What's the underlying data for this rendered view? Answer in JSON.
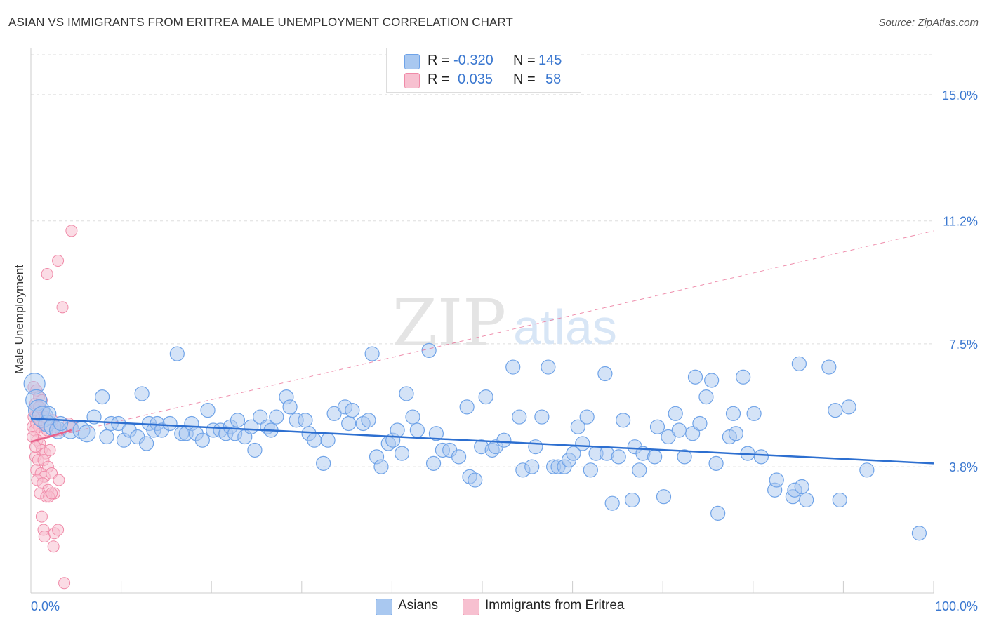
{
  "title": "ASIAN VS IMMIGRANTS FROM ERITREA MALE UNEMPLOYMENT CORRELATION CHART",
  "source": "Source: ZipAtlas.com",
  "watermark": {
    "zip": "ZIP",
    "atlas": "atlas"
  },
  "legend": {
    "rows": [
      {
        "r_label": "R =",
        "r_value": "-0.320",
        "n_label": "N =",
        "n_value": "145",
        "color": "#6fa3e8"
      },
      {
        "r_label": "R =",
        "r_value": "0.035",
        "n_label": "N =",
        "n_value": "58",
        "color": "#f08aa8"
      }
    ]
  },
  "bottom_legend": {
    "asians": "Asians",
    "eritrea": "Immigrants from Eritrea"
  },
  "colors": {
    "asian_fill": "#a9c8f0",
    "asian_stroke": "#6fa3e8",
    "asian_line": "#2d6fd0",
    "eritrea_fill": "#f7c0d0",
    "eritrea_stroke": "#f08aa8",
    "eritrea_line": "#e8608a",
    "grid": "#dddddd",
    "tick_label": "#3b78d0"
  },
  "chart_data": {
    "type": "scatter",
    "title": "ASIAN VS IMMIGRANTS FROM ERITREA MALE UNEMPLOYMENT CORRELATION CHART",
    "xlabel": "",
    "ylabel": "Male Unemployment",
    "xlim": [
      0,
      100
    ],
    "ylim": [
      0,
      16.2
    ],
    "x_tick_labels": [
      {
        "x": 0,
        "label": "0.0%"
      },
      {
        "x": 100,
        "label": "100.0%"
      }
    ],
    "y_ticks": [
      {
        "y": 3.8,
        "label": "3.8%"
      },
      {
        "y": 7.5,
        "label": "7.5%"
      },
      {
        "y": 11.2,
        "label": "11.2%"
      },
      {
        "y": 15.0,
        "label": "15.0%"
      }
    ],
    "grid": true,
    "legend_position": "top-center",
    "series": [
      {
        "name": "Asians",
        "r": -0.32,
        "n": 145,
        "trend": {
          "x": [
            0,
            100
          ],
          "y": [
            5.25,
            3.9
          ]
        },
        "points": [
          [
            0.4,
            6.3
          ],
          [
            0.6,
            5.8
          ],
          [
            0.9,
            5.5
          ],
          [
            1.3,
            5.3
          ],
          [
            1.8,
            5.1
          ],
          [
            2.4,
            5.0
          ],
          [
            3.0,
            4.9
          ],
          [
            4.4,
            4.9
          ],
          [
            5.6,
            4.9
          ],
          [
            6.2,
            4.8
          ],
          [
            2.0,
            5.4
          ],
          [
            3.3,
            5.1
          ],
          [
            7.0,
            5.3
          ],
          [
            7.9,
            5.9
          ],
          [
            8.4,
            4.7
          ],
          [
            8.9,
            5.1
          ],
          [
            9.7,
            5.1
          ],
          [
            10.3,
            4.6
          ],
          [
            10.9,
            4.9
          ],
          [
            11.8,
            4.7
          ],
          [
            12.3,
            6.0
          ],
          [
            12.8,
            4.5
          ],
          [
            13.1,
            5.1
          ],
          [
            13.6,
            4.9
          ],
          [
            14.0,
            5.1
          ],
          [
            14.5,
            4.9
          ],
          [
            15.4,
            5.1
          ],
          [
            16.2,
            7.2
          ],
          [
            16.7,
            4.8
          ],
          [
            17.2,
            4.8
          ],
          [
            17.8,
            5.1
          ],
          [
            18.3,
            4.8
          ],
          [
            19.0,
            4.6
          ],
          [
            19.6,
            5.5
          ],
          [
            20.2,
            4.9
          ],
          [
            21.0,
            4.9
          ],
          [
            21.6,
            4.8
          ],
          [
            22.1,
            5.0
          ],
          [
            22.6,
            4.8
          ],
          [
            22.9,
            5.2
          ],
          [
            23.7,
            4.7
          ],
          [
            24.4,
            5.0
          ],
          [
            24.8,
            4.3
          ],
          [
            25.4,
            5.3
          ],
          [
            26.2,
            5.0
          ],
          [
            26.6,
            4.9
          ],
          [
            27.2,
            5.3
          ],
          [
            28.3,
            5.9
          ],
          [
            28.7,
            5.6
          ],
          [
            29.4,
            5.2
          ],
          [
            30.4,
            5.2
          ],
          [
            30.8,
            4.8
          ],
          [
            31.4,
            4.6
          ],
          [
            32.4,
            3.9
          ],
          [
            32.9,
            4.6
          ],
          [
            33.6,
            5.4
          ],
          [
            34.8,
            5.6
          ],
          [
            35.2,
            5.1
          ],
          [
            35.6,
            5.5
          ],
          [
            36.8,
            5.1
          ],
          [
            37.4,
            5.2
          ],
          [
            37.8,
            7.2
          ],
          [
            38.3,
            4.1
          ],
          [
            38.8,
            3.8
          ],
          [
            39.6,
            4.5
          ],
          [
            40.1,
            4.6
          ],
          [
            40.6,
            4.9
          ],
          [
            41.1,
            4.2
          ],
          [
            41.6,
            6.0
          ],
          [
            42.3,
            5.3
          ],
          [
            42.8,
            4.9
          ],
          [
            44.1,
            7.3
          ],
          [
            44.6,
            3.9
          ],
          [
            44.9,
            4.8
          ],
          [
            45.6,
            4.3
          ],
          [
            46.4,
            4.3
          ],
          [
            47.4,
            4.1
          ],
          [
            48.3,
            5.6
          ],
          [
            48.6,
            3.5
          ],
          [
            49.2,
            3.4
          ],
          [
            49.9,
            4.4
          ],
          [
            50.4,
            5.9
          ],
          [
            51.1,
            4.3
          ],
          [
            51.5,
            4.4
          ],
          [
            52.4,
            4.6
          ],
          [
            53.4,
            6.8
          ],
          [
            54.1,
            5.3
          ],
          [
            54.5,
            3.7
          ],
          [
            55.5,
            3.8
          ],
          [
            55.9,
            4.4
          ],
          [
            56.6,
            5.3
          ],
          [
            57.3,
            6.8
          ],
          [
            57.9,
            3.8
          ],
          [
            58.4,
            3.8
          ],
          [
            59.1,
            3.8
          ],
          [
            59.6,
            4.0
          ],
          [
            60.1,
            4.2
          ],
          [
            60.6,
            5.0
          ],
          [
            61.1,
            4.5
          ],
          [
            61.6,
            5.3
          ],
          [
            62.0,
            3.7
          ],
          [
            62.6,
            4.2
          ],
          [
            63.6,
            6.6
          ],
          [
            63.8,
            4.2
          ],
          [
            64.4,
            2.7
          ],
          [
            65.1,
            4.1
          ],
          [
            65.6,
            5.2
          ],
          [
            66.6,
            2.8
          ],
          [
            66.9,
            4.4
          ],
          [
            67.4,
            3.7
          ],
          [
            67.8,
            4.2
          ],
          [
            69.1,
            4.1
          ],
          [
            69.4,
            5.0
          ],
          [
            70.1,
            2.9
          ],
          [
            70.6,
            4.7
          ],
          [
            71.4,
            5.4
          ],
          [
            71.8,
            4.9
          ],
          [
            72.4,
            4.1
          ],
          [
            73.3,
            4.8
          ],
          [
            73.6,
            6.5
          ],
          [
            74.1,
            5.1
          ],
          [
            74.8,
            5.9
          ],
          [
            75.4,
            6.4
          ],
          [
            75.9,
            3.9
          ],
          [
            76.1,
            2.4
          ],
          [
            77.4,
            4.7
          ],
          [
            77.8,
            5.4
          ],
          [
            78.1,
            4.8
          ],
          [
            78.9,
            6.5
          ],
          [
            79.4,
            4.2
          ],
          [
            80.1,
            5.4
          ],
          [
            80.9,
            4.1
          ],
          [
            82.4,
            3.1
          ],
          [
            82.6,
            3.4
          ],
          [
            84.4,
            2.9
          ],
          [
            84.6,
            3.1
          ],
          [
            85.4,
            3.2
          ],
          [
            85.9,
            2.8
          ],
          [
            89.6,
            2.8
          ],
          [
            92.6,
            3.7
          ],
          [
            85.1,
            6.9
          ],
          [
            88.4,
            6.8
          ],
          [
            89.1,
            5.5
          ],
          [
            90.6,
            5.6
          ],
          [
            98.4,
            1.8
          ]
        ]
      },
      {
        "name": "Immigrants from Eritrea",
        "r": 0.035,
        "n": 58,
        "trend": {
          "x": [
            0,
            4.5
          ],
          "y": [
            4.55,
            4.9
          ]
        },
        "trend_extended": {
          "x": [
            0,
            100
          ],
          "y": [
            4.55,
            10.9
          ]
        },
        "points": [
          [
            0.2,
            5.0
          ],
          [
            0.3,
            5.3
          ],
          [
            0.4,
            5.5
          ],
          [
            0.5,
            5.7
          ],
          [
            0.6,
            5.1
          ],
          [
            0.8,
            5.4
          ],
          [
            0.9,
            5.0
          ],
          [
            1.0,
            5.2
          ],
          [
            1.1,
            4.8
          ],
          [
            1.3,
            5.5
          ],
          [
            0.3,
            6.2
          ],
          [
            0.6,
            6.1
          ],
          [
            0.9,
            5.9
          ],
          [
            1.2,
            5.8
          ],
          [
            0.4,
            4.9
          ],
          [
            0.7,
            4.6
          ],
          [
            1.0,
            4.5
          ],
          [
            1.2,
            4.3
          ],
          [
            1.6,
            4.2
          ],
          [
            2.1,
            4.3
          ],
          [
            0.5,
            4.1
          ],
          [
            0.8,
            4.0
          ],
          [
            1.4,
            4.0
          ],
          [
            1.9,
            3.8
          ],
          [
            0.6,
            3.7
          ],
          [
            1.1,
            3.6
          ],
          [
            1.5,
            3.5
          ],
          [
            2.3,
            3.6
          ],
          [
            0.7,
            3.4
          ],
          [
            1.3,
            3.3
          ],
          [
            1.9,
            3.1
          ],
          [
            2.6,
            3.0
          ],
          [
            3.1,
            3.4
          ],
          [
            1.0,
            3.0
          ],
          [
            1.7,
            2.9
          ],
          [
            2.0,
            2.9
          ],
          [
            2.3,
            3.0
          ],
          [
            1.2,
            2.3
          ],
          [
            1.4,
            1.9
          ],
          [
            1.5,
            1.7
          ],
          [
            2.5,
            1.4
          ],
          [
            2.6,
            1.8
          ],
          [
            3.0,
            1.9
          ],
          [
            3.7,
            0.3
          ],
          [
            1.8,
            9.6
          ],
          [
            3.0,
            10.0
          ],
          [
            3.5,
            8.6
          ],
          [
            4.5,
            10.9
          ],
          [
            0.9,
            5.6
          ],
          [
            1.6,
            5.3
          ],
          [
            2.8,
            5.0
          ],
          [
            3.3,
            4.9
          ],
          [
            4.2,
            5.1
          ],
          [
            4.6,
            5.0
          ],
          [
            0.2,
            4.7
          ],
          [
            0.5,
            4.4
          ],
          [
            1.8,
            4.9
          ],
          [
            2.4,
            5.2
          ]
        ]
      }
    ]
  }
}
